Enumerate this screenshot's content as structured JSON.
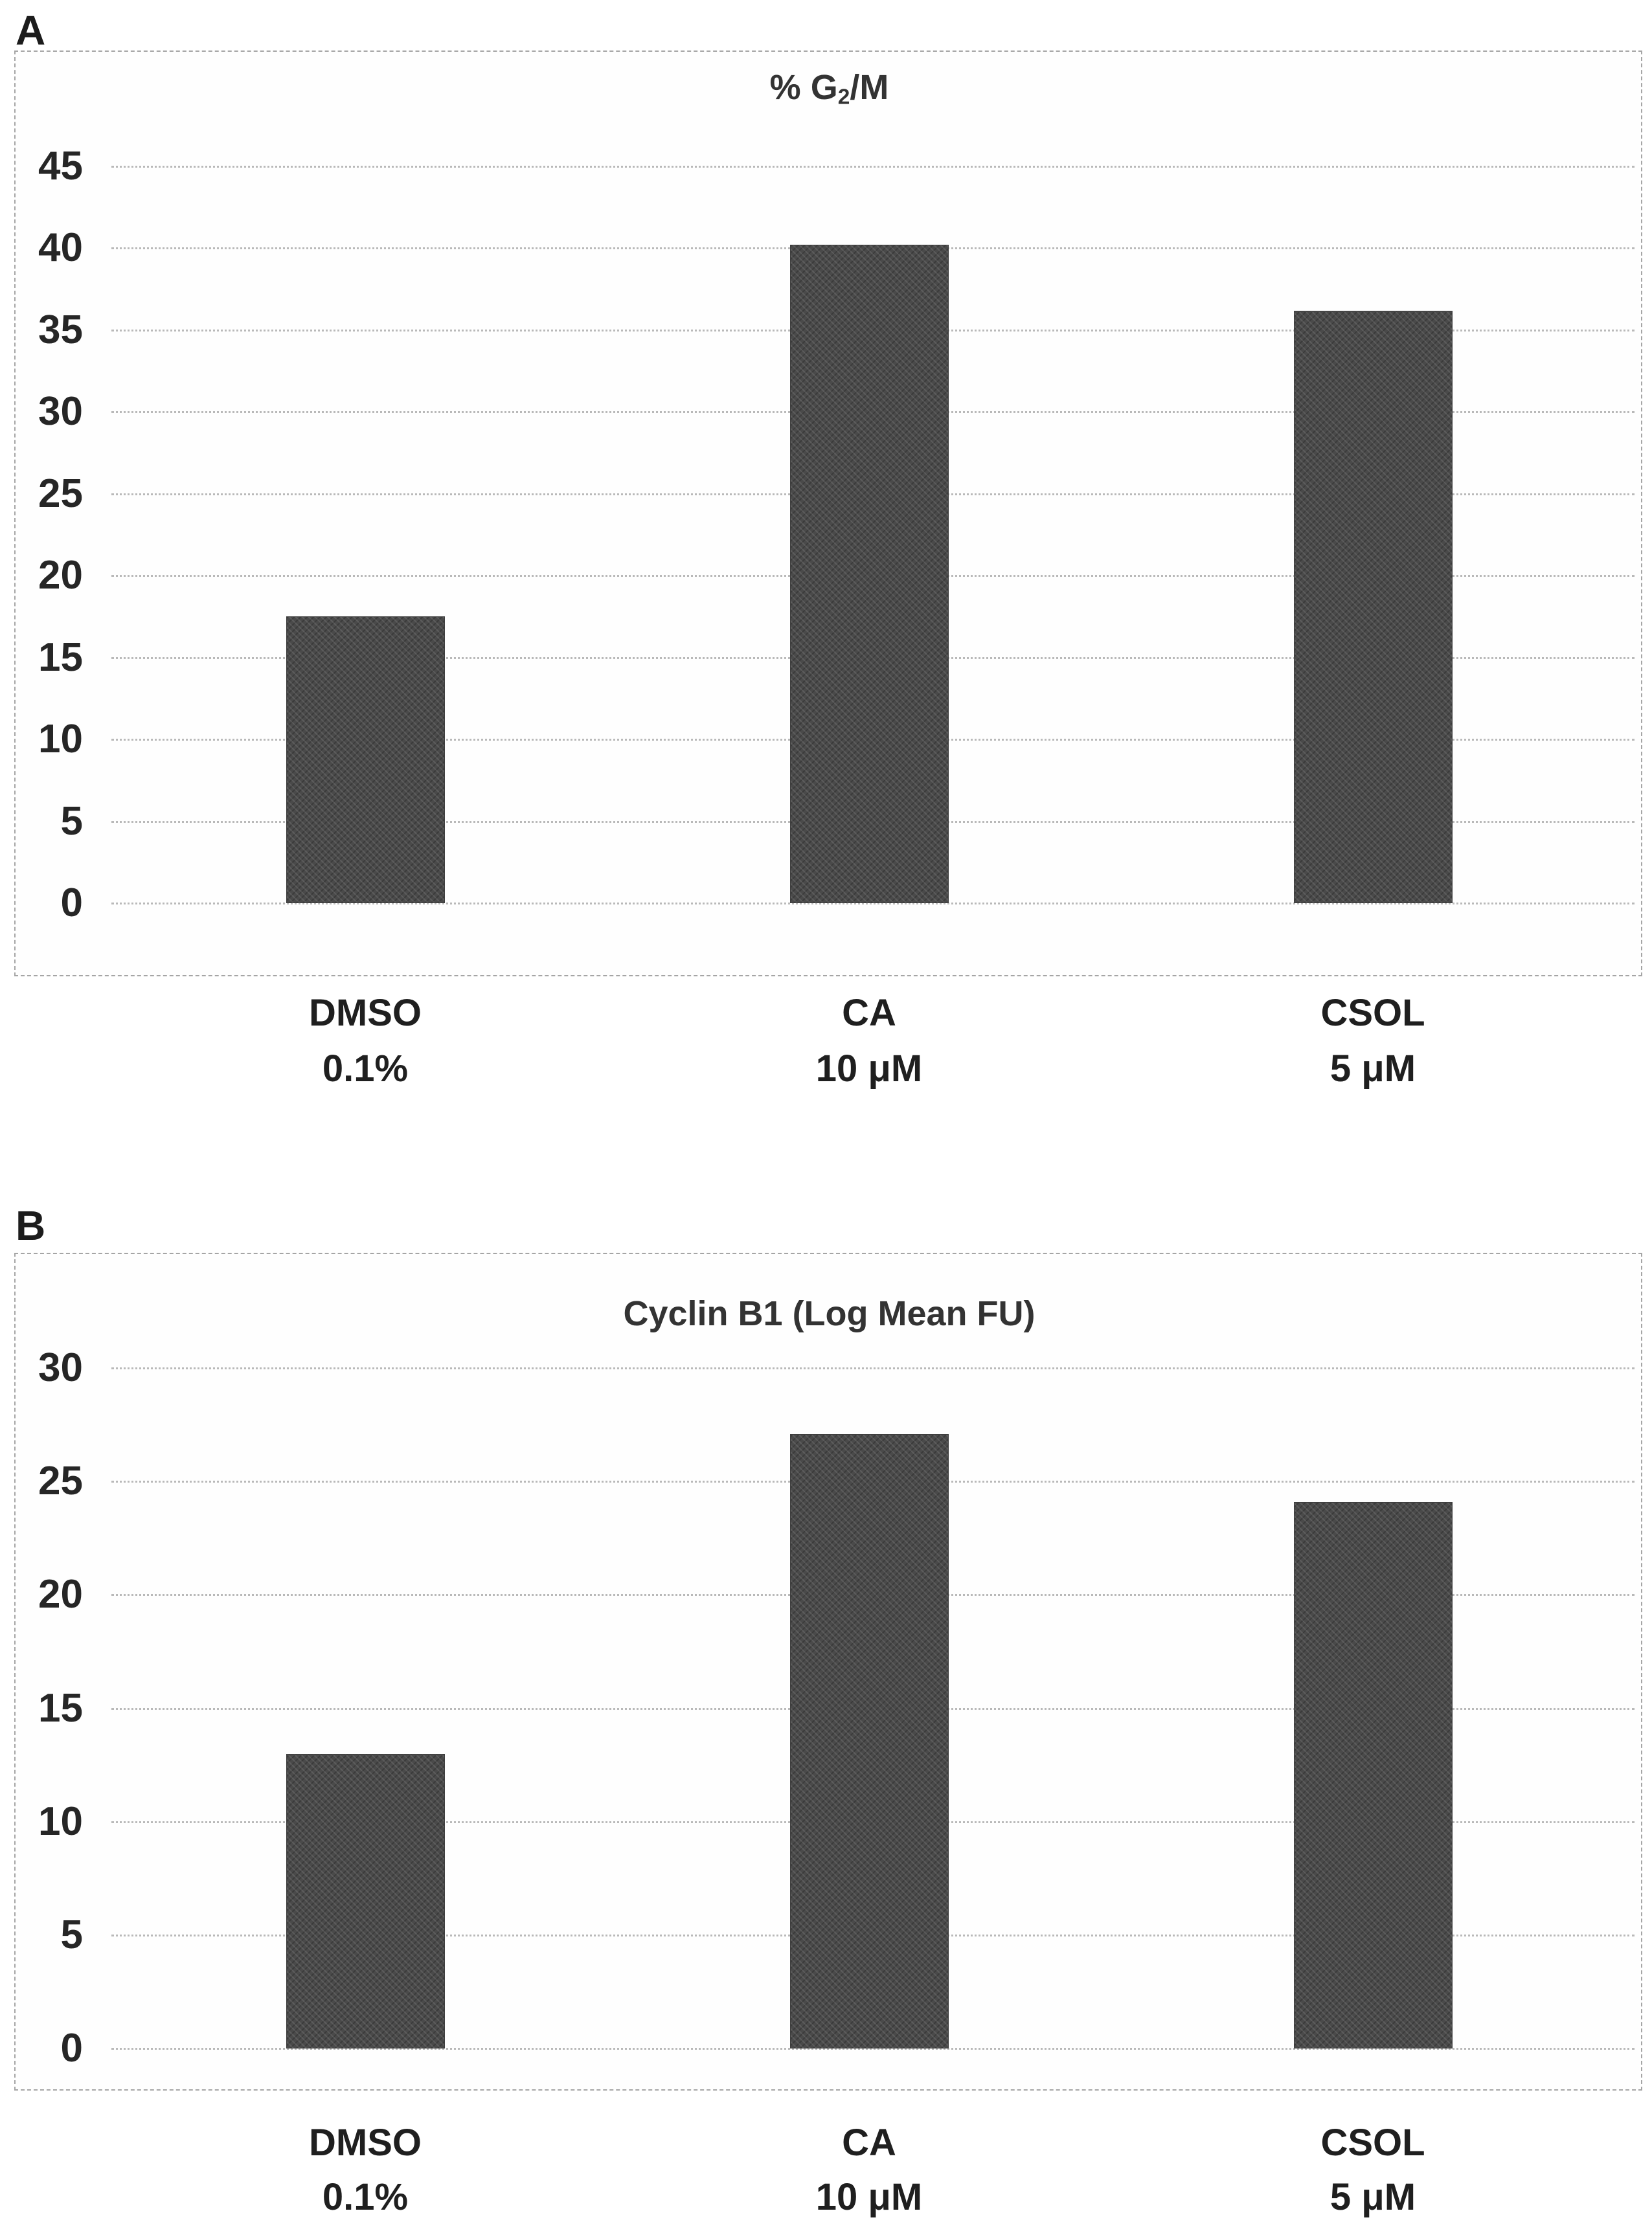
{
  "panels": [
    {
      "letter": "A"
    },
    {
      "letter": "B"
    }
  ],
  "chart_data": [
    {
      "type": "bar",
      "panel": "A",
      "title": "% G₂/M",
      "title_parts": {
        "pre": "% G",
        "sub": "2",
        "post": "/M"
      },
      "categories": [
        {
          "line1": "DMSO",
          "line2": "0.1%"
        },
        {
          "line1": "CA",
          "line2": "10 μM"
        },
        {
          "line1": "CSOL",
          "line2": "5 μM"
        }
      ],
      "values": [
        17.5,
        40.2,
        36.2
      ],
      "xlabel": "",
      "ylabel": "",
      "ylim": [
        0,
        45
      ],
      "yticks": [
        0,
        5,
        10,
        15,
        20,
        25,
        30,
        35,
        40,
        45
      ],
      "grid": "horizontal dotted",
      "legend": false,
      "bar_color": "#4a4a4a",
      "gridline_color": "#b9b9b9"
    },
    {
      "type": "bar",
      "panel": "B",
      "title": "Cyclin B1 (Log Mean FU)",
      "title_parts": {
        "pre": "Cyclin B1 (Log Mean FU)",
        "sub": "",
        "post": ""
      },
      "categories": [
        {
          "line1": "DMSO",
          "line2": "0.1%"
        },
        {
          "line1": "CA",
          "line2": "10 μM"
        },
        {
          "line1": "CSOL",
          "line2": "5 μM"
        }
      ],
      "values": [
        13.0,
        27.1,
        24.1
      ],
      "xlabel": "",
      "ylabel": "",
      "ylim": [
        0,
        30
      ],
      "yticks": [
        0,
        5,
        10,
        15,
        20,
        25,
        30
      ],
      "grid": "horizontal dotted",
      "legend": false,
      "bar_color": "#4a4a4a",
      "gridline_color": "#b9b9b9"
    }
  ]
}
